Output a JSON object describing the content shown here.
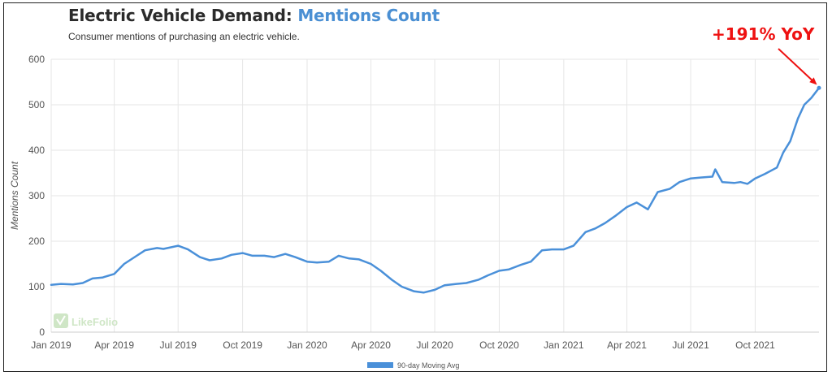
{
  "header": {
    "title_prefix": "Electric Vehicle Demand: ",
    "title_highlight": "Mentions Count",
    "subtitle": "Consumer mentions of purchasing an electric vehicle."
  },
  "annotation": {
    "text": "+191% YoY",
    "color": "#ee1111"
  },
  "watermark": {
    "text": "LikeFolio"
  },
  "colors": {
    "series": "#4a90d9",
    "grid": "#e6e6e6",
    "title_highlight": "#4a8fd3"
  },
  "chart_data": {
    "type": "line",
    "title": "Electric Vehicle Demand: Mentions Count",
    "subtitle": "Consumer mentions of purchasing an electric vehicle.",
    "xlabel": "",
    "ylabel": "Mentions Count",
    "x_ticks": [
      "Jan 2019",
      "Apr 2019",
      "Jul 2019",
      "Oct 2019",
      "Jan 2020",
      "Apr 2020",
      "Jul 2020",
      "Oct 2020",
      "Jan 2021",
      "Apr 2021",
      "Jul 2021",
      "Oct 2021"
    ],
    "y_ticks": [
      0,
      100,
      200,
      300,
      400,
      500,
      600
    ],
    "ylim": [
      0,
      600
    ],
    "xlim": [
      "2019-01-01",
      "2021-12-31"
    ],
    "grid": true,
    "legend_position": "bottom-center",
    "series": [
      {
        "name": "90-day Moving Avg",
        "color": "#4a90d9",
        "points": [
          [
            "2019-01-01",
            104
          ],
          [
            "2019-01-15",
            106
          ],
          [
            "2019-02-01",
            105
          ],
          [
            "2019-02-15",
            108
          ],
          [
            "2019-03-01",
            118
          ],
          [
            "2019-03-15",
            120
          ],
          [
            "2019-04-01",
            128
          ],
          [
            "2019-04-15",
            150
          ],
          [
            "2019-05-01",
            166
          ],
          [
            "2019-05-15",
            180
          ],
          [
            "2019-06-01",
            185
          ],
          [
            "2019-06-10",
            183
          ],
          [
            "2019-07-01",
            190
          ],
          [
            "2019-07-15",
            182
          ],
          [
            "2019-08-01",
            165
          ],
          [
            "2019-08-15",
            158
          ],
          [
            "2019-09-01",
            162
          ],
          [
            "2019-09-15",
            170
          ],
          [
            "2019-10-01",
            174
          ],
          [
            "2019-10-15",
            168
          ],
          [
            "2019-11-01",
            168
          ],
          [
            "2019-11-15",
            165
          ],
          [
            "2019-12-01",
            172
          ],
          [
            "2019-12-15",
            165
          ],
          [
            "2020-01-01",
            155
          ],
          [
            "2020-01-15",
            153
          ],
          [
            "2020-02-01",
            155
          ],
          [
            "2020-02-15",
            168
          ],
          [
            "2020-03-01",
            162
          ],
          [
            "2020-03-15",
            160
          ],
          [
            "2020-04-01",
            150
          ],
          [
            "2020-04-15",
            135
          ],
          [
            "2020-05-01",
            115
          ],
          [
            "2020-05-15",
            100
          ],
          [
            "2020-06-01",
            90
          ],
          [
            "2020-06-15",
            87
          ],
          [
            "2020-07-01",
            93
          ],
          [
            "2020-07-15",
            103
          ],
          [
            "2020-08-01",
            106
          ],
          [
            "2020-08-15",
            108
          ],
          [
            "2020-09-01",
            115
          ],
          [
            "2020-09-15",
            125
          ],
          [
            "2020-10-01",
            135
          ],
          [
            "2020-10-15",
            138
          ],
          [
            "2020-11-01",
            148
          ],
          [
            "2020-11-15",
            155
          ],
          [
            "2020-12-01",
            180
          ],
          [
            "2020-12-15",
            182
          ],
          [
            "2021-01-01",
            182
          ],
          [
            "2021-01-15",
            190
          ],
          [
            "2021-02-01",
            220
          ],
          [
            "2021-02-15",
            228
          ],
          [
            "2021-03-01",
            240
          ],
          [
            "2021-03-15",
            255
          ],
          [
            "2021-04-01",
            275
          ],
          [
            "2021-04-15",
            285
          ],
          [
            "2021-05-01",
            270
          ],
          [
            "2021-05-15",
            308
          ],
          [
            "2021-06-01",
            315
          ],
          [
            "2021-06-15",
            330
          ],
          [
            "2021-07-01",
            338
          ],
          [
            "2021-07-15",
            340
          ],
          [
            "2021-08-01",
            342
          ],
          [
            "2021-08-05",
            358
          ],
          [
            "2021-08-15",
            330
          ],
          [
            "2021-09-01",
            328
          ],
          [
            "2021-09-10",
            330
          ],
          [
            "2021-09-20",
            326
          ],
          [
            "2021-10-01",
            338
          ],
          [
            "2021-10-15",
            348
          ],
          [
            "2021-11-01",
            362
          ],
          [
            "2021-11-10",
            395
          ],
          [
            "2021-11-20",
            420
          ],
          [
            "2021-12-01",
            470
          ],
          [
            "2021-12-10",
            500
          ],
          [
            "2021-12-20",
            515
          ],
          [
            "2021-12-31",
            537
          ]
        ]
      }
    ]
  }
}
